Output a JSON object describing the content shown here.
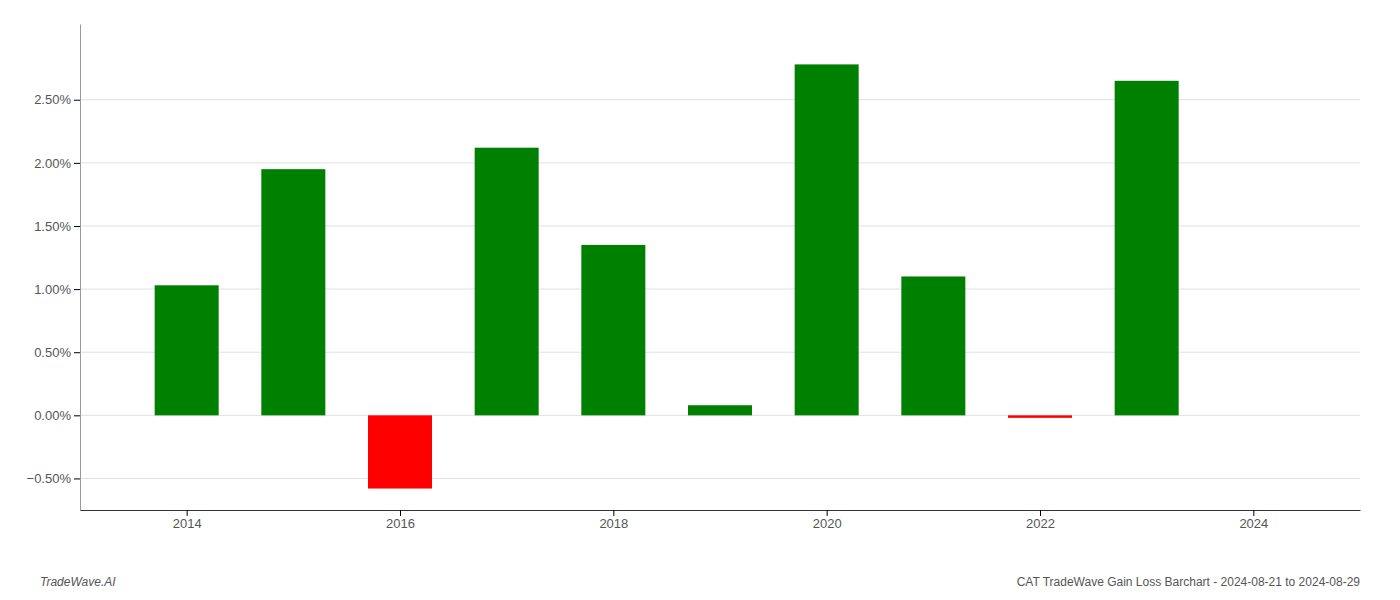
{
  "chart_data": {
    "type": "bar",
    "title": "CAT TradeWave Gain Loss Barchart - 2024-08-21 to 2024-08-29",
    "annotations": [
      "TradeWave.AI"
    ],
    "x": [
      2014,
      2015,
      2016,
      2017,
      2018,
      2019,
      2020,
      2021,
      2022,
      2023
    ],
    "values": [
      1.03,
      1.95,
      -0.58,
      2.12,
      1.35,
      0.08,
      2.78,
      1.1,
      -0.02,
      2.65
    ],
    "colors": [
      "#008000",
      "#008000",
      "#ff0000",
      "#008000",
      "#008000",
      "#008000",
      "#008000",
      "#008000",
      "#ff0000",
      "#008000"
    ],
    "xlim": [
      2013.0,
      2025.0
    ],
    "xticks": [
      2014,
      2016,
      2018,
      2020,
      2022,
      2024
    ],
    "ylim": [
      -0.75,
      3.1
    ],
    "yticks": [
      {
        "value": -0.5,
        "label": "−0.50%"
      },
      {
        "value": 0.0,
        "label": "0.00%"
      },
      {
        "value": 0.5,
        "label": "0.50%"
      },
      {
        "value": 1.0,
        "label": "1.00%"
      },
      {
        "value": 1.5,
        "label": "1.50%"
      },
      {
        "value": 2.0,
        "label": "2.00%"
      },
      {
        "value": 2.5,
        "label": "2.50%"
      }
    ],
    "grid": true
  }
}
